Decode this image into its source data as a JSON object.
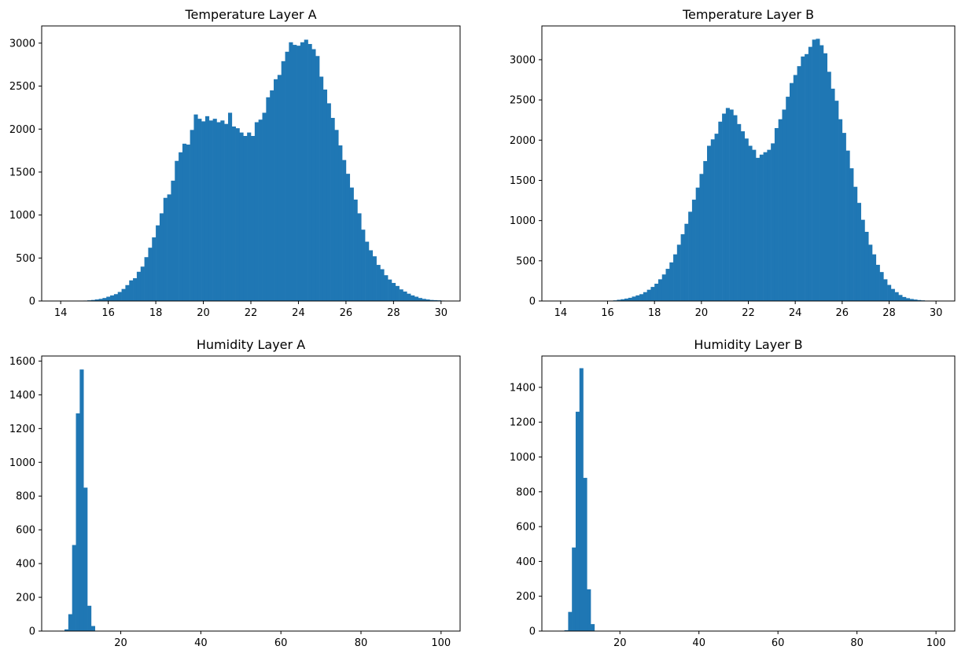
{
  "chart_data": [
    {
      "type": "bar",
      "title": "Temperature Layer A",
      "xlabel": "",
      "ylabel": "",
      "xlim": [
        13.2,
        30.8
      ],
      "ylim": [
        0,
        3200
      ],
      "xticks": [
        14,
        16,
        18,
        20,
        22,
        24,
        26,
        28,
        30
      ],
      "yticks": [
        0,
        500,
        1000,
        1500,
        2000,
        2500,
        3000
      ],
      "grid": false,
      "bins": {
        "start": 14.0,
        "width": 0.16
      },
      "values": [
        0,
        0,
        0,
        0,
        0,
        3,
        5,
        8,
        12,
        18,
        25,
        35,
        50,
        65,
        80,
        105,
        140,
        185,
        240,
        265,
        340,
        400,
        510,
        620,
        740,
        880,
        1020,
        1200,
        1240,
        1400,
        1630,
        1730,
        1830,
        1820,
        1990,
        2170,
        2120,
        2090,
        2150,
        2100,
        2120,
        2080,
        2100,
        2060,
        2190,
        2030,
        2010,
        1960,
        1920,
        1960,
        1920,
        2080,
        2110,
        2190,
        2370,
        2450,
        2580,
        2630,
        2790,
        2900,
        3010,
        2980,
        2970,
        3010,
        3040,
        2990,
        2930,
        2850,
        2610,
        2460,
        2300,
        2130,
        1990,
        1810,
        1640,
        1480,
        1320,
        1180,
        1020,
        830,
        690,
        590,
        520,
        420,
        370,
        300,
        250,
        210,
        175,
        135,
        110,
        85,
        65,
        50,
        35,
        25,
        18,
        12,
        10,
        8,
        5,
        3,
        0,
        0,
        0,
        0,
        0,
        0,
        0,
        0
      ]
    },
    {
      "type": "bar",
      "title": "Temperature Layer B",
      "xlabel": "",
      "ylabel": "",
      "xlim": [
        13.2,
        30.8
      ],
      "ylim": [
        0,
        3420
      ],
      "xticks": [
        14,
        16,
        18,
        20,
        22,
        24,
        26,
        28,
        30
      ],
      "yticks": [
        0,
        500,
        1000,
        1500,
        2000,
        2500,
        3000
      ],
      "grid": false,
      "bins": {
        "start": 14.0,
        "width": 0.16
      },
      "values": [
        0,
        0,
        0,
        0,
        0,
        0,
        0,
        0,
        0,
        0,
        0,
        0,
        3,
        5,
        8,
        15,
        22,
        30,
        40,
        55,
        70,
        85,
        110,
        140,
        175,
        215,
        270,
        330,
        400,
        480,
        580,
        700,
        830,
        960,
        1110,
        1260,
        1410,
        1580,
        1740,
        1930,
        2010,
        2080,
        2230,
        2330,
        2400,
        2380,
        2310,
        2200,
        2110,
        2020,
        1930,
        1880,
        1780,
        1820,
        1850,
        1880,
        1960,
        2150,
        2260,
        2380,
        2540,
        2710,
        2810,
        2920,
        3040,
        3070,
        3160,
        3250,
        3260,
        3180,
        3080,
        2850,
        2640,
        2490,
        2260,
        2090,
        1870,
        1650,
        1420,
        1220,
        1010,
        860,
        700,
        580,
        450,
        360,
        270,
        200,
        150,
        110,
        75,
        50,
        35,
        25,
        18,
        12,
        8,
        5,
        3,
        0,
        0,
        0,
        0,
        0,
        0,
        0,
        0,
        0,
        0,
        0
      ]
    },
    {
      "type": "bar",
      "title": "Humidity Layer A",
      "xlabel": "",
      "ylabel": "",
      "xlim": [
        0.25,
        104.75
      ],
      "ylim": [
        0,
        1630
      ],
      "xticks": [
        20,
        40,
        60,
        80,
        100
      ],
      "yticks": [
        0,
        200,
        400,
        600,
        800,
        1000,
        1200,
        1400,
        1600
      ],
      "grid": false,
      "bins": {
        "start": 5.0,
        "width": 0.95
      },
      "values": [
        0,
        10,
        100,
        510,
        1290,
        1550,
        850,
        150,
        30,
        0,
        0,
        0,
        0,
        0,
        0,
        0,
        0,
        0,
        0,
        0,
        0,
        0,
        0,
        0,
        0,
        0,
        0,
        0,
        0,
        0,
        0,
        0,
        0,
        0,
        0,
        0,
        0,
        0,
        0,
        0,
        0,
        0,
        0,
        0,
        0,
        0,
        0,
        0,
        0,
        0,
        0,
        0,
        0,
        0,
        0,
        0,
        0,
        0,
        0,
        0,
        0,
        0,
        0,
        0,
        0,
        0,
        0,
        0,
        0,
        0,
        0,
        0,
        0,
        0,
        0,
        0,
        0,
        0,
        0,
        0,
        0,
        0,
        0,
        0,
        0,
        0,
        0,
        0,
        0,
        0,
        0,
        0,
        0,
        0,
        0,
        0,
        0,
        0,
        0,
        0
      ]
    },
    {
      "type": "bar",
      "title": "Humidity Layer B",
      "xlabel": "",
      "ylabel": "",
      "xlim": [
        0.25,
        104.75
      ],
      "ylim": [
        0,
        1580
      ],
      "xticks": [
        20,
        40,
        60,
        80,
        100
      ],
      "yticks": [
        0,
        200,
        400,
        600,
        800,
        1000,
        1200,
        1400
      ],
      "grid": false,
      "bins": {
        "start": 5.0,
        "width": 0.95
      },
      "values": [
        0,
        5,
        110,
        480,
        1260,
        1510,
        880,
        240,
        40,
        0,
        0,
        0,
        0,
        0,
        0,
        0,
        0,
        0,
        0,
        0,
        0,
        0,
        0,
        0,
        0,
        0,
        0,
        0,
        0,
        0,
        0,
        0,
        0,
        0,
        0,
        0,
        0,
        0,
        0,
        0,
        0,
        0,
        0,
        0,
        0,
        0,
        0,
        0,
        0,
        0,
        0,
        0,
        0,
        0,
        0,
        0,
        0,
        0,
        0,
        0,
        0,
        0,
        0,
        0,
        0,
        0,
        0,
        0,
        0,
        0,
        0,
        0,
        0,
        0,
        0,
        0,
        0,
        0,
        0,
        0,
        0,
        0,
        0,
        0,
        0,
        0,
        0,
        0,
        0,
        0,
        0,
        0,
        0,
        0,
        0,
        0,
        0,
        0,
        0,
        0
      ]
    }
  ],
  "colors": {
    "bar": "#1f77b4"
  }
}
